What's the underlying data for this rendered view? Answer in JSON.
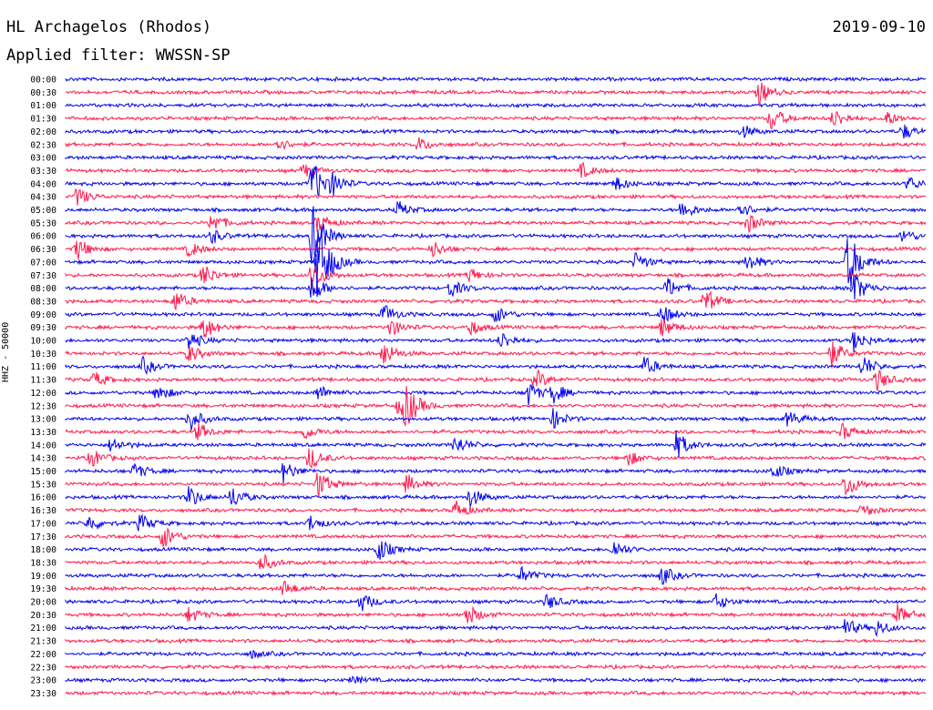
{
  "header": {
    "title": "HL Archagelos (Rhodos)",
    "filter": "Applied filter: WWSSN-SP",
    "date": "2019-09-10"
  },
  "chart_data": {
    "type": "line",
    "title": "HL Archagelos (Rhodos)",
    "ylabel": "HHZ - 50000",
    "colors": [
      "#0000ee",
      "#ff1a4d"
    ],
    "rows": [
      "00:00",
      "00:30",
      "01:00",
      "01:30",
      "02:00",
      "02:30",
      "03:00",
      "03:30",
      "04:00",
      "04:30",
      "05:00",
      "05:30",
      "06:00",
      "06:30",
      "07:00",
      "07:30",
      "08:00",
      "08:30",
      "09:00",
      "09:30",
      "10:00",
      "10:30",
      "11:00",
      "11:30",
      "12:00",
      "12:30",
      "13:00",
      "13:30",
      "14:00",
      "14:30",
      "15:00",
      "15:30",
      "16:00",
      "16:30",
      "17:00",
      "17:30",
      "18:00",
      "18:30",
      "19:00",
      "19:30",
      "20:00",
      "20:30",
      "21:00",
      "21:30",
      "22:00",
      "22:30",
      "23:00",
      "23:30"
    ],
    "row_minutes": 30,
    "events": [
      {
        "row": 1,
        "minute": 24.2,
        "amp": 1.4
      },
      {
        "row": 3,
        "minute": 24.6,
        "amp": 1.6
      },
      {
        "row": 3,
        "minute": 26.8,
        "amp": 1.2
      },
      {
        "row": 3,
        "minute": 28.6,
        "amp": 1.0
      },
      {
        "row": 4,
        "minute": 23.6,
        "amp": 0.8
      },
      {
        "row": 4,
        "minute": 29.2,
        "amp": 1.0
      },
      {
        "row": 5,
        "minute": 12.3,
        "amp": 0.9
      },
      {
        "row": 5,
        "minute": 7.4,
        "amp": 0.8
      },
      {
        "row": 7,
        "minute": 8.3,
        "amp": 0.9
      },
      {
        "row": 7,
        "minute": 18.0,
        "amp": 0.9
      },
      {
        "row": 8,
        "minute": 8.6,
        "amp": 3.0
      },
      {
        "row": 8,
        "minute": 9.3,
        "amp": 1.2
      },
      {
        "row": 8,
        "minute": 19.2,
        "amp": 0.9
      },
      {
        "row": 8,
        "minute": 29.4,
        "amp": 0.9
      },
      {
        "row": 9,
        "minute": 0.4,
        "amp": 1.2
      },
      {
        "row": 10,
        "minute": 11.6,
        "amp": 1.0
      },
      {
        "row": 10,
        "minute": 21.5,
        "amp": 1.3
      },
      {
        "row": 10,
        "minute": 23.5,
        "amp": 1.1
      },
      {
        "row": 11,
        "minute": 5.1,
        "amp": 1.3
      },
      {
        "row": 11,
        "minute": 8.8,
        "amp": 1.2
      },
      {
        "row": 11,
        "minute": 23.8,
        "amp": 1.2
      },
      {
        "row": 12,
        "minute": 8.6,
        "amp": 4.0
      },
      {
        "row": 12,
        "minute": 5.1,
        "amp": 0.9
      },
      {
        "row": 12,
        "minute": 29.2,
        "amp": 0.9
      },
      {
        "row": 13,
        "minute": 0.4,
        "amp": 1.4
      },
      {
        "row": 13,
        "minute": 4.3,
        "amp": 1.0
      },
      {
        "row": 13,
        "minute": 12.8,
        "amp": 1.0
      },
      {
        "row": 14,
        "minute": 8.8,
        "amp": 6.0
      },
      {
        "row": 14,
        "minute": 19.9,
        "amp": 1.2
      },
      {
        "row": 14,
        "minute": 23.8,
        "amp": 1.2
      },
      {
        "row": 14,
        "minute": 27.3,
        "amp": 4.0
      },
      {
        "row": 15,
        "minute": 8.6,
        "amp": 2.0
      },
      {
        "row": 15,
        "minute": 4.8,
        "amp": 1.4
      },
      {
        "row": 15,
        "minute": 14.1,
        "amp": 0.9
      },
      {
        "row": 16,
        "minute": 8.6,
        "amp": 1.8
      },
      {
        "row": 16,
        "minute": 13.4,
        "amp": 1.2
      },
      {
        "row": 16,
        "minute": 21.0,
        "amp": 1.3
      },
      {
        "row": 16,
        "minute": 27.5,
        "amp": 2.0
      },
      {
        "row": 17,
        "minute": 3.8,
        "amp": 1.4
      },
      {
        "row": 17,
        "minute": 22.3,
        "amp": 1.6
      },
      {
        "row": 18,
        "minute": 11.1,
        "amp": 1.2
      },
      {
        "row": 18,
        "minute": 15.0,
        "amp": 1.1
      },
      {
        "row": 18,
        "minute": 20.8,
        "amp": 1.3
      },
      {
        "row": 19,
        "minute": 4.8,
        "amp": 1.6
      },
      {
        "row": 19,
        "minute": 11.3,
        "amp": 1.2
      },
      {
        "row": 19,
        "minute": 14.1,
        "amp": 1.0
      },
      {
        "row": 19,
        "minute": 20.8,
        "amp": 1.2
      },
      {
        "row": 20,
        "minute": 4.3,
        "amp": 1.2
      },
      {
        "row": 20,
        "minute": 15.2,
        "amp": 1.1
      },
      {
        "row": 20,
        "minute": 27.5,
        "amp": 1.4
      },
      {
        "row": 21,
        "minute": 4.3,
        "amp": 1.1
      },
      {
        "row": 21,
        "minute": 11.1,
        "amp": 1.6
      },
      {
        "row": 21,
        "minute": 26.7,
        "amp": 1.8
      },
      {
        "row": 22,
        "minute": 2.7,
        "amp": 1.0
      },
      {
        "row": 22,
        "minute": 20.2,
        "amp": 1.2
      },
      {
        "row": 22,
        "minute": 27.8,
        "amp": 1.4
      },
      {
        "row": 23,
        "minute": 1.0,
        "amp": 1.0
      },
      {
        "row": 23,
        "minute": 16.4,
        "amp": 1.2
      },
      {
        "row": 23,
        "minute": 28.3,
        "amp": 1.4
      },
      {
        "row": 24,
        "minute": 3.2,
        "amp": 1.2
      },
      {
        "row": 24,
        "minute": 8.8,
        "amp": 1.0
      },
      {
        "row": 24,
        "minute": 16.1,
        "amp": 1.6
      },
      {
        "row": 24,
        "minute": 17.0,
        "amp": 1.2
      },
      {
        "row": 25,
        "minute": 11.6,
        "amp": 1.0
      },
      {
        "row": 25,
        "minute": 11.8,
        "amp": 1.0
      },
      {
        "row": 25,
        "minute": 11.9,
        "amp": 1.6
      },
      {
        "row": 26,
        "minute": 4.3,
        "amp": 1.6
      },
      {
        "row": 26,
        "minute": 17.0,
        "amp": 1.2
      },
      {
        "row": 26,
        "minute": 25.2,
        "amp": 1.0
      },
      {
        "row": 27,
        "minute": 4.6,
        "amp": 1.1
      },
      {
        "row": 27,
        "minute": 8.3,
        "amp": 1.0
      },
      {
        "row": 27,
        "minute": 27.1,
        "amp": 1.0
      },
      {
        "row": 28,
        "minute": 1.6,
        "amp": 1.0
      },
      {
        "row": 28,
        "minute": 13.6,
        "amp": 1.2
      },
      {
        "row": 28,
        "minute": 21.3,
        "amp": 1.8
      },
      {
        "row": 29,
        "minute": 0.9,
        "amp": 1.2
      },
      {
        "row": 29,
        "minute": 8.5,
        "amp": 1.6
      },
      {
        "row": 29,
        "minute": 19.6,
        "amp": 1.0
      },
      {
        "row": 30,
        "minute": 2.4,
        "amp": 1.0
      },
      {
        "row": 30,
        "minute": 7.6,
        "amp": 1.4
      },
      {
        "row": 30,
        "minute": 24.7,
        "amp": 1.0
      },
      {
        "row": 31,
        "minute": 8.8,
        "amp": 1.8
      },
      {
        "row": 31,
        "minute": 11.9,
        "amp": 1.2
      },
      {
        "row": 31,
        "minute": 27.2,
        "amp": 1.6
      },
      {
        "row": 32,
        "minute": 4.3,
        "amp": 1.4
      },
      {
        "row": 32,
        "minute": 5.8,
        "amp": 1.4
      },
      {
        "row": 32,
        "minute": 14.1,
        "amp": 1.2
      },
      {
        "row": 33,
        "minute": 13.6,
        "amp": 1.2
      },
      {
        "row": 33,
        "minute": 27.8,
        "amp": 0.8
      },
      {
        "row": 34,
        "minute": 0.8,
        "amp": 1.0
      },
      {
        "row": 34,
        "minute": 2.6,
        "amp": 1.2
      },
      {
        "row": 34,
        "minute": 8.5,
        "amp": 1.0
      },
      {
        "row": 35,
        "minute": 3.4,
        "amp": 1.6
      },
      {
        "row": 36,
        "minute": 10.9,
        "amp": 1.6
      },
      {
        "row": 36,
        "minute": 19.1,
        "amp": 1.2
      },
      {
        "row": 37,
        "minute": 6.8,
        "amp": 1.2
      },
      {
        "row": 38,
        "minute": 15.9,
        "amp": 1.0
      },
      {
        "row": 38,
        "minute": 20.8,
        "amp": 1.2
      },
      {
        "row": 39,
        "minute": 7.6,
        "amp": 1.0
      },
      {
        "row": 40,
        "minute": 10.3,
        "amp": 1.2
      },
      {
        "row": 40,
        "minute": 16.8,
        "amp": 1.0
      },
      {
        "row": 40,
        "minute": 22.7,
        "amp": 1.0
      },
      {
        "row": 41,
        "minute": 4.3,
        "amp": 1.0
      },
      {
        "row": 41,
        "minute": 14.0,
        "amp": 1.4
      },
      {
        "row": 41,
        "minute": 29.0,
        "amp": 1.2
      },
      {
        "row": 42,
        "minute": 27.2,
        "amp": 1.2
      },
      {
        "row": 42,
        "minute": 28.3,
        "amp": 1.0
      },
      {
        "row": 44,
        "minute": 6.5,
        "amp": 0.5
      },
      {
        "row": 46,
        "minute": 10.0,
        "amp": 0.5
      }
    ]
  }
}
